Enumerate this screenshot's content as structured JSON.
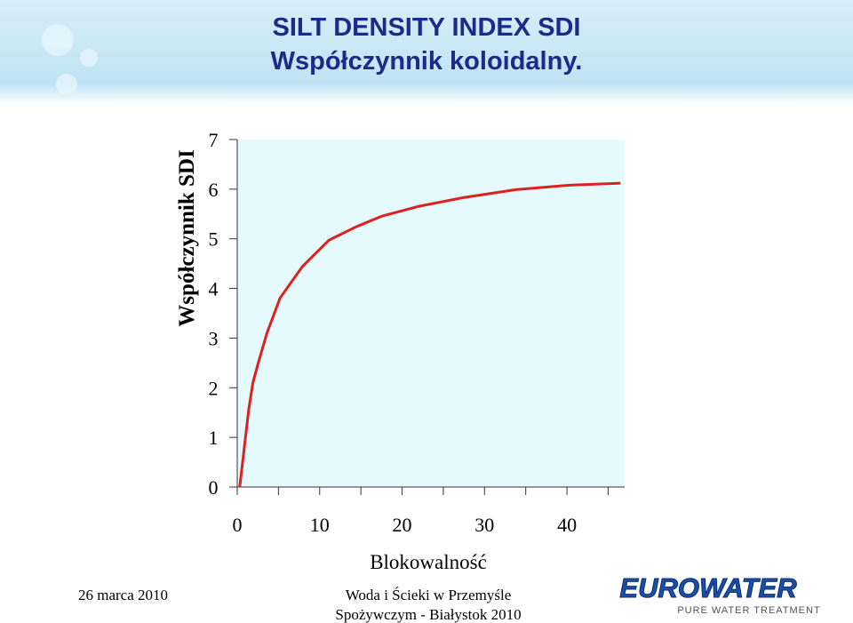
{
  "header": {
    "title_line1": "SILT DENSITY INDEX  SDI",
    "title_line2": "Współczynnik koloidalny."
  },
  "chart_data": {
    "type": "line",
    "y_label": "Współczynnik  SDI",
    "x_label": "Blokowalność",
    "x": [
      0.3,
      0.9,
      1.4,
      1.9,
      2.5,
      3.6,
      5.2,
      7.9,
      11.1,
      14.4,
      17.6,
      21.9,
      27.4,
      33.8,
      40.3,
      46.5
    ],
    "values": [
      0,
      0.86,
      1.57,
      2.1,
      2.47,
      3.1,
      3.81,
      4.44,
      4.97,
      5.24,
      5.46,
      5.65,
      5.83,
      5.99,
      6.08,
      6.12
    ],
    "color": "#e0201e",
    "xlim": [
      0,
      47
    ],
    "xticks": [
      0,
      10,
      20,
      30,
      40
    ],
    "xminor_ticks": [
      5,
      15,
      25,
      35,
      45
    ],
    "ylim": [
      0,
      7
    ],
    "yticks": [
      0,
      1,
      2,
      3,
      4,
      5,
      6,
      7
    ]
  },
  "footer": {
    "date": "26 marca 2010",
    "event_line1": "Woda i Ścieki w Przemyśle",
    "event_line2": "Spożywczym - Białystok 2010",
    "logo": "EUROWATER",
    "logo_tagline": "PURE WATER TREATMENT"
  }
}
